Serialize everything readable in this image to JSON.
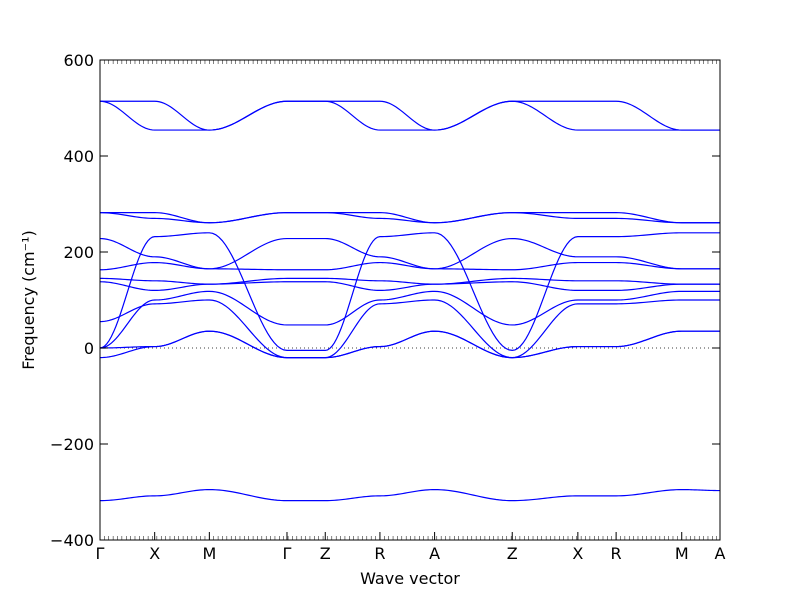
{
  "chart_data": {
    "type": "line",
    "title": "",
    "xlabel": "Wave vector",
    "ylabel": "Frequency (cm⁻¹)",
    "ylim": [
      -400,
      600
    ],
    "yticks": [
      -400,
      -200,
      0,
      200,
      400,
      600
    ],
    "ytick_labels": [
      "−400",
      "−200",
      "0",
      "200",
      "400",
      "600"
    ],
    "grid": false,
    "legend": "none",
    "zero_line": {
      "y": 0,
      "style": "dotted"
    },
    "line_color": "#0000ff",
    "xticks": [
      {
        "label": "Γ",
        "x": 0.0
      },
      {
        "label": "X",
        "x": 0.5
      },
      {
        "label": "M",
        "x": 1.0
      },
      {
        "label": "Γ",
        "x": 1.71
      },
      {
        "label": "Z",
        "x": 2.06
      },
      {
        "label": "R",
        "x": 2.56
      },
      {
        "label": "A",
        "x": 3.06
      },
      {
        "label": "Z",
        "x": 3.77
      },
      {
        "label": "X",
        "x": 4.37
      },
      {
        "label": "R",
        "x": 4.72
      },
      {
        "label": "M",
        "x": 5.32
      },
      {
        "label": "A",
        "x": 5.67
      }
    ],
    "xlim": [
      0,
      5.67
    ],
    "series": [
      {
        "x": [
          0,
          0.5,
          1.0,
          1.71,
          2.06,
          2.56,
          3.06,
          3.77,
          4.37,
          4.72,
          5.32,
          5.67
        ],
        "values": [
          514,
          514,
          454,
          514,
          514,
          514,
          454,
          514,
          514,
          514,
          454,
          454
        ]
      },
      {
        "x": [
          0,
          0.5,
          1.0,
          1.71,
          2.06,
          2.56,
          3.06,
          3.77,
          4.37,
          4.72,
          5.32,
          5.67
        ],
        "values": [
          514,
          454,
          454,
          514,
          514,
          454,
          454,
          514,
          454,
          454,
          454,
          454
        ]
      },
      {
        "x": [
          0,
          0.5,
          1.0,
          1.71,
          2.06,
          2.56,
          3.06,
          3.77,
          4.37,
          4.72,
          5.32,
          5.67
        ],
        "values": [
          282,
          282,
          261,
          282,
          282,
          282,
          261,
          282,
          282,
          282,
          261,
          261
        ]
      },
      {
        "x": [
          0,
          0.5,
          1.0,
          1.71,
          2.06,
          2.56,
          3.06,
          3.77,
          4.37,
          4.72,
          5.32,
          5.67
        ],
        "values": [
          282,
          270,
          261,
          282,
          282,
          270,
          261,
          282,
          270,
          270,
          261,
          261
        ]
      },
      {
        "x": [
          0,
          0.5,
          1.0,
          1.71,
          2.06,
          2.56,
          3.06,
          3.77,
          4.37,
          4.72,
          5.32,
          5.67
        ],
        "values": [
          228,
          190,
          165,
          228,
          228,
          190,
          165,
          228,
          190,
          190,
          165,
          165
        ]
      },
      {
        "x": [
          0,
          0.5,
          1.0,
          1.71,
          2.06,
          2.56,
          3.06,
          3.77,
          4.37,
          4.72,
          5.32,
          5.67
        ],
        "values": [
          163,
          178,
          165,
          163,
          163,
          178,
          165,
          163,
          178,
          178,
          165,
          165
        ]
      },
      {
        "x": [
          0,
          0.5,
          1.0,
          1.71,
          2.06,
          2.56,
          3.06,
          3.77,
          4.37,
          4.72,
          5.32,
          5.67
        ],
        "values": [
          0,
          232,
          240,
          -5,
          -5,
          232,
          240,
          -5,
          232,
          232,
          240,
          240
        ]
      },
      {
        "x": [
          0,
          0.5,
          1.0,
          1.71,
          2.06,
          2.56,
          3.06,
          3.77,
          4.37,
          4.72,
          5.32,
          5.67
        ],
        "values": [
          145,
          140,
          133,
          145,
          145,
          140,
          133,
          145,
          140,
          140,
          133,
          133
        ]
      },
      {
        "x": [
          0,
          0.5,
          1.0,
          1.71,
          2.06,
          2.56,
          3.06,
          3.77,
          4.37,
          4.72,
          5.32,
          5.67
        ],
        "values": [
          138,
          120,
          133,
          138,
          138,
          120,
          133,
          138,
          120,
          120,
          133,
          133
        ]
      },
      {
        "x": [
          0,
          0.5,
          1.0,
          1.71,
          2.06,
          2.56,
          3.06,
          3.77,
          4.37,
          4.72,
          5.32,
          5.67
        ],
        "values": [
          0,
          100,
          118,
          48,
          48,
          100,
          118,
          48,
          100,
          100,
          118,
          118
        ]
      },
      {
        "x": [
          0,
          0.5,
          1.0,
          1.71,
          2.06,
          2.56,
          3.06,
          3.77,
          4.37,
          4.72,
          5.32,
          5.67
        ],
        "values": [
          55,
          92,
          100,
          -20,
          -20,
          92,
          100,
          -20,
          92,
          92,
          100,
          100
        ]
      },
      {
        "x": [
          0,
          0.5,
          1.0,
          1.71,
          2.06,
          2.56,
          3.06,
          3.77,
          4.37,
          4.72,
          5.32,
          5.67
        ],
        "values": [
          0,
          3,
          35,
          -20,
          -20,
          3,
          35,
          -20,
          3,
          3,
          35,
          35
        ]
      },
      {
        "x": [
          0,
          0.5,
          1.0,
          1.71,
          2.06,
          2.56,
          3.06,
          3.77,
          4.37,
          4.72,
          5.32,
          5.67
        ],
        "values": [
          -20,
          3,
          35,
          -20,
          -20,
          3,
          35,
          -20,
          3,
          3,
          35,
          35
        ]
      },
      {
        "x": [
          0,
          0.5,
          1.0,
          1.71,
          2.06,
          2.56,
          3.06,
          3.77,
          4.37,
          4.72,
          5.32,
          5.67
        ],
        "values": [
          -318,
          -308,
          -295,
          -318,
          -318,
          -308,
          -295,
          -318,
          -308,
          -308,
          -295,
          -297
        ]
      }
    ]
  }
}
